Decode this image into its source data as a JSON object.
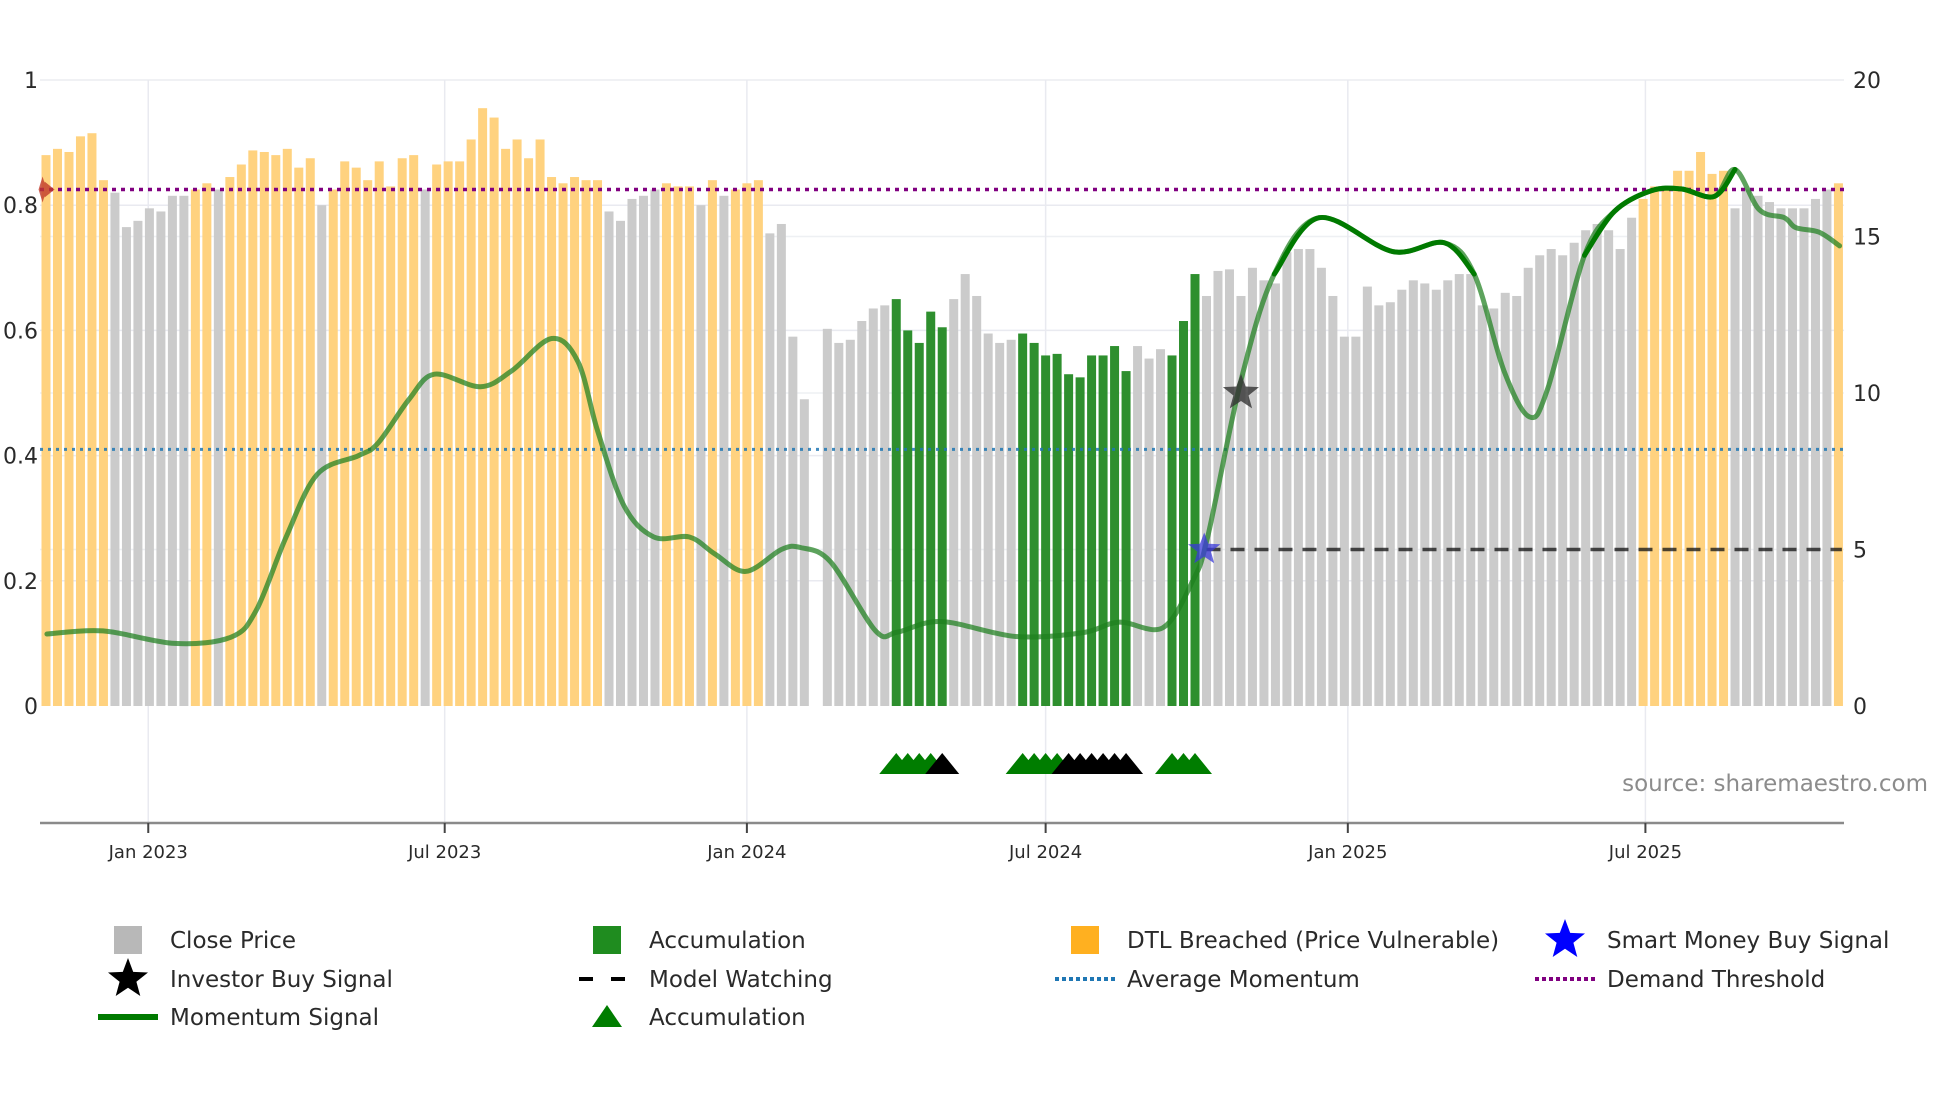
{
  "chart_data": {
    "type": "bar",
    "title": "",
    "xlabel": "",
    "x_unit": "week index (weekly bars, ~Nov 2022 to Oct 2025)",
    "x_ticks": [
      {
        "label": "Jan 2023",
        "index": 8.9
      },
      {
        "label": "Jul 2023",
        "index": 34.7
      },
      {
        "label": "Jan 2024",
        "index": 61.0
      },
      {
        "label": "Jul 2024",
        "index": 87.0
      },
      {
        "label": "Jan 2025",
        "index": 113.3
      },
      {
        "label": "Jul 2025",
        "index": 139.2
      }
    ],
    "left_axis": {
      "ylim": [
        0,
        1
      ],
      "ticks": [
        "0",
        "0.2",
        "0.4",
        "0.6",
        "0.8",
        "1"
      ],
      "tick_values": [
        0,
        0.2,
        0.4,
        0.6,
        0.8,
        1
      ]
    },
    "right_axis": {
      "ylim": [
        0,
        20
      ],
      "ticks": [
        "0",
        "5",
        "10",
        "15",
        "20"
      ],
      "tick_values": [
        0,
        5,
        10,
        15,
        20
      ]
    },
    "close_price": [
      17.6,
      17.8,
      17.7,
      18.2,
      18.3,
      16.8,
      16.4,
      15.3,
      15.5,
      15.9,
      15.8,
      16.3,
      16.3,
      16.5,
      16.7,
      16.5,
      16.9,
      17.3,
      17.75,
      17.7,
      17.6,
      17.8,
      17.2,
      17.5,
      16.0,
      16.5,
      17.4,
      17.2,
      16.8,
      17.4,
      16.6,
      17.5,
      17.6,
      16.5,
      17.3,
      17.4,
      17.4,
      18.1,
      19.1,
      18.8,
      17.8,
      18.1,
      17.5,
      18.1,
      16.9,
      16.7,
      16.9,
      16.8,
      16.8,
      15.8,
      15.5,
      16.2,
      16.3,
      16.5,
      16.7,
      16.6,
      16.6,
      16.0,
      16.8,
      16.3,
      16.5,
      16.7,
      16.8,
      15.1,
      15.4,
      11.8,
      9.8,
      null,
      12.05,
      11.6,
      11.7,
      12.3,
      12.7,
      12.8,
      13.0,
      12.0,
      11.6,
      12.6,
      12.1,
      13.0,
      13.8,
      13.1,
      11.9,
      11.6,
      11.7,
      11.9,
      11.6,
      11.2,
      11.25,
      10.6,
      10.5,
      11.2,
      11.2,
      11.5,
      10.7,
      11.5,
      11.1,
      11.4,
      11.2,
      12.3,
      13.8,
      13.1,
      13.9,
      13.95,
      13.1,
      14.0,
      13.6,
      13.5,
      14.5,
      14.6,
      14.6,
      14.0,
      13.1,
      11.8,
      11.8,
      13.4,
      12.8,
      12.9,
      13.3,
      13.6,
      13.5,
      13.3,
      13.6,
      13.8,
      13.8,
      12.8,
      12.7,
      13.2,
      13.1,
      14.0,
      14.4,
      14.6,
      14.4,
      14.8,
      15.2,
      15.4,
      15.2,
      14.6,
      15.6,
      16.2,
      16.6,
      16.6,
      17.1,
      17.1,
      17.7,
      17.0,
      17.1,
      15.9,
      16.5,
      16.3,
      16.1,
      15.9,
      15.9,
      15.9,
      16.2,
      16.5,
      16.7
    ],
    "bar_category_runs": [
      [
        "dtl",
        6
      ],
      [
        "close",
        7
      ],
      [
        "dtl",
        2
      ],
      [
        "close",
        1
      ],
      [
        "dtl",
        8
      ],
      [
        "close",
        1
      ],
      [
        "dtl",
        8
      ],
      [
        "close",
        1
      ],
      [
        "dtl",
        15
      ],
      [
        "close",
        5
      ],
      [
        "dtl",
        3
      ],
      [
        "close",
        1
      ],
      [
        "dtl",
        1
      ],
      [
        "close",
        1
      ],
      [
        "dtl",
        3
      ],
      [
        "close",
        4
      ],
      [
        "none",
        1
      ],
      [
        "close",
        6
      ],
      [
        "accumulation",
        5
      ],
      [
        "close",
        6
      ],
      [
        "accumulation",
        10
      ],
      [
        "close",
        3
      ],
      [
        "accumulation",
        3
      ],
      [
        "close",
        38
      ],
      [
        "dtl",
        8
      ],
      [
        "close",
        9
      ],
      [
        "dtl",
        1
      ]
    ],
    "momentum_signal": [
      [
        0.08,
        0.115
      ],
      [
        4.96,
        0.12
      ],
      [
        11.2,
        0.1
      ],
      [
        16.1,
        0.11
      ],
      [
        18.3,
        0.153
      ],
      [
        20.9,
        0.27
      ],
      [
        23.6,
        0.37
      ],
      [
        27.2,
        0.4
      ],
      [
        28.9,
        0.42
      ],
      [
        31.6,
        0.49
      ],
      [
        33.8,
        0.53
      ],
      [
        37.8,
        0.51
      ],
      [
        40.5,
        0.535
      ],
      [
        44.0,
        0.587
      ],
      [
        46.3,
        0.55
      ],
      [
        48.0,
        0.44
      ],
      [
        50.3,
        0.32
      ],
      [
        52.9,
        0.27
      ],
      [
        56.0,
        0.27
      ],
      [
        58.2,
        0.243
      ],
      [
        60.9,
        0.215
      ],
      [
        64.0,
        0.25
      ],
      [
        65.7,
        0.253
      ],
      [
        68.3,
        0.23
      ],
      [
        72.2,
        0.12
      ],
      [
        74.1,
        0.118
      ],
      [
        77.9,
        0.135
      ],
      [
        84.4,
        0.111
      ],
      [
        90.2,
        0.117
      ],
      [
        93.4,
        0.134
      ],
      [
        97.2,
        0.125
      ],
      [
        99.8,
        0.2
      ],
      [
        101.1,
        0.27
      ],
      [
        104.0,
        0.52
      ],
      [
        106.9,
        0.69
      ],
      [
        110.8,
        0.78
      ],
      [
        117.2,
        0.726
      ],
      [
        121.7,
        0.74
      ],
      [
        124.3,
        0.69
      ],
      [
        126.9,
        0.535
      ],
      [
        129.1,
        0.462
      ],
      [
        130.7,
        0.507
      ],
      [
        133.9,
        0.72
      ],
      [
        136.5,
        0.79
      ],
      [
        139.7,
        0.823
      ],
      [
        142.3,
        0.826
      ],
      [
        145.2,
        0.814
      ],
      [
        147.0,
        0.857
      ],
      [
        149.1,
        0.793
      ],
      [
        151.3,
        0.78
      ],
      [
        152.3,
        0.764
      ],
      [
        154.3,
        0.757
      ],
      [
        156.1,
        0.735
      ]
    ],
    "momentum_strong_ranges": [
      [
        105,
        125
      ],
      [
        133.5,
        148
      ]
    ],
    "demand_threshold": 0.825,
    "average_momentum": 0.41,
    "model_watching": {
      "price": 5,
      "from_index": 101,
      "to_index": 156.3
    },
    "smart_money_buy_signal": {
      "index": 100.8,
      "price": 5.0
    },
    "investor_buy_signal": {
      "index": 104.0,
      "price": 10.0
    },
    "start_marker": {
      "index": -0.3,
      "value": 0.825
    },
    "accumulation_triangles": [
      {
        "index": 74,
        "color": "green"
      },
      {
        "index": 75,
        "color": "green"
      },
      {
        "index": 76,
        "color": "green"
      },
      {
        "index": 77,
        "color": "green"
      },
      {
        "index": 78,
        "color": "black"
      },
      {
        "index": 85,
        "color": "green"
      },
      {
        "index": 86,
        "color": "green"
      },
      {
        "index": 87,
        "color": "green"
      },
      {
        "index": 88,
        "color": "green"
      },
      {
        "index": 89,
        "color": "black"
      },
      {
        "index": 90,
        "color": "black"
      },
      {
        "index": 91,
        "color": "black"
      },
      {
        "index": 92,
        "color": "black"
      },
      {
        "index": 93,
        "color": "black"
      },
      {
        "index": 94,
        "color": "black"
      },
      {
        "index": 98,
        "color": "green"
      },
      {
        "index": 99,
        "color": "green"
      },
      {
        "index": 100,
        "color": "green"
      }
    ],
    "colors": {
      "close": "#cbcbcb",
      "accumulation": "#2e8f2e",
      "dtl": "#ffd27f",
      "momentum": "#1f7f1f",
      "momentum_strong": "#007a00",
      "demand": "#800080",
      "average": "#1f77b4",
      "model": "#111111",
      "smart_money": "#3a3ad8",
      "investor": "#333333",
      "green_triangle": "#007d00",
      "black_triangle": "#000000",
      "start_marker": "#c0392b"
    },
    "legend": {
      "placement": "bottom",
      "items": [
        {
          "label": "Close Price",
          "symbol": "square",
          "color": "#b8b8b8"
        },
        {
          "label": "Accumulation",
          "symbol": "square",
          "color": "#1f8c1f"
        },
        {
          "label": "DTL Breached (Price Vulnerable)",
          "symbol": "square",
          "color": "#ffb020"
        },
        {
          "label": "Smart Money Buy Signal",
          "symbol": "star",
          "color": "#0000ff"
        },
        {
          "label": "Investor Buy Signal",
          "symbol": "star",
          "color": "#000000"
        },
        {
          "label": "Model Watching",
          "symbol": "dashed",
          "color": "#000000"
        },
        {
          "label": "Average Momentum",
          "symbol": "dotted",
          "color": "#1f77b4"
        },
        {
          "label": "Demand Threshold",
          "symbol": "dotted",
          "color": "#800080"
        },
        {
          "label": "Momentum Signal",
          "symbol": "line",
          "color": "#007a00"
        },
        {
          "label": "Accumulation",
          "symbol": "triangle",
          "color": "#007d00"
        }
      ]
    },
    "annotation": "source: sharemaestro.com"
  }
}
